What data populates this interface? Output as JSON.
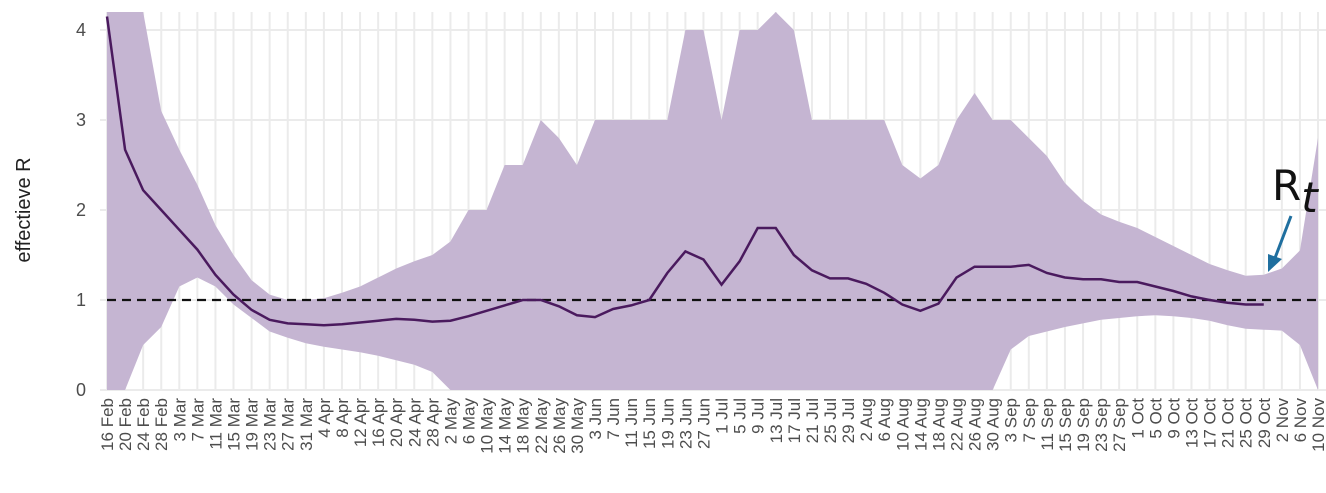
{
  "chart_data": {
    "type": "line",
    "y_label": "effectieve R",
    "categories": [
      "16 Feb",
      "20 Feb",
      "24 Feb",
      "28 Feb",
      "3 Mar",
      "7 Mar",
      "11 Mar",
      "15 Mar",
      "19 Mar",
      "23 Mar",
      "27 Mar",
      "31 Mar",
      "4 Apr",
      "8 Apr",
      "12 Apr",
      "16 Apr",
      "20 Apr",
      "24 Apr",
      "28 Apr",
      "2 May",
      "6 May",
      "10 May",
      "14 May",
      "18 May",
      "22 May",
      "26 May",
      "30 May",
      "3 Jun",
      "7 Jun",
      "11 Jun",
      "15 Jun",
      "19 Jun",
      "23 Jun",
      "27 Jun",
      "1 Jul",
      "5 Jul",
      "9 Jul",
      "13 Jul",
      "17 Jul",
      "21 Jul",
      "25 Jul",
      "29 Jul",
      "2 Aug",
      "6 Aug",
      "10 Aug",
      "14 Aug",
      "18 Aug",
      "22 Aug",
      "26 Aug",
      "30 Aug",
      "3 Sep",
      "7 Sep",
      "11 Sep",
      "15 Sep",
      "19 Sep",
      "23 Sep",
      "27 Sep",
      "1 Oct",
      "5 Oct",
      "9 Oct",
      "13 Oct",
      "17 Oct",
      "21 Oct",
      "25 Oct",
      "29 Oct",
      "2 Nov",
      "6 Nov",
      "10 Nov"
    ],
    "series": [
      {
        "color": "#4a1a5e",
        "values": [
          4.15,
          2.67,
          2.22,
          2.0,
          1.78,
          1.56,
          1.28,
          1.06,
          0.89,
          0.78,
          0.74,
          0.73,
          0.72,
          0.73,
          0.75,
          0.77,
          0.79,
          0.78,
          0.76,
          0.77,
          0.82,
          0.88,
          0.94,
          1.0,
          1.0,
          0.93,
          0.83,
          0.81,
          0.9,
          0.94,
          1.0,
          1.3,
          1.54,
          1.45,
          1.17,
          1.43,
          1.8,
          1.8,
          1.5,
          1.33,
          1.24,
          1.24,
          1.18,
          1.08,
          0.95,
          0.88,
          0.96,
          1.25,
          1.37,
          1.37,
          1.37,
          1.39,
          1.3,
          1.25,
          1.23,
          1.23,
          1.2,
          1.2,
          1.15,
          1.1,
          1.04,
          1.0,
          0.97,
          0.95,
          0.95,
          null,
          null,
          null
        ]
      },
      {
        "type": "band",
        "color": "#c5b5d2",
        "upper": [
          4.2,
          4.2,
          4.2,
          3.1,
          2.67,
          2.28,
          1.83,
          1.5,
          1.22,
          1.06,
          1.0,
          1.0,
          1.02,
          1.08,
          1.15,
          1.25,
          1.35,
          1.43,
          1.5,
          1.65,
          2.0,
          2.0,
          2.5,
          2.5,
          3.0,
          2.8,
          2.5,
          3.0,
          3.0,
          3.0,
          3.0,
          3.0,
          4.0,
          4.0,
          3.0,
          4.0,
          4.0,
          4.2,
          4.0,
          3.0,
          3.0,
          3.0,
          3.0,
          3.0,
          2.5,
          2.35,
          2.5,
          3.0,
          3.3,
          3.0,
          3.0,
          2.8,
          2.6,
          2.3,
          2.1,
          1.95,
          1.87,
          1.8,
          1.7,
          1.6,
          1.5,
          1.4,
          1.33,
          1.27,
          1.28,
          1.35,
          1.55,
          2.8
        ],
        "lower": [
          0,
          0,
          0.5,
          0.7,
          1.15,
          1.25,
          1.15,
          0.95,
          0.8,
          0.65,
          0.58,
          0.52,
          0.48,
          0.45,
          0.42,
          0.38,
          0.33,
          0.28,
          0.2,
          0,
          0,
          0,
          0,
          0,
          0,
          0,
          0,
          0,
          0,
          0,
          0,
          0,
          0,
          0,
          0,
          0,
          0,
          0,
          0,
          0,
          0,
          0,
          0,
          0,
          0,
          0,
          0,
          0,
          0,
          0,
          0.45,
          0.6,
          0.65,
          0.7,
          0.74,
          0.78,
          0.8,
          0.82,
          0.83,
          0.82,
          0.8,
          0.77,
          0.72,
          0.68,
          0.67,
          0.66,
          0.5,
          0
        ]
      }
    ],
    "reference_line": 1,
    "ylim": [
      0,
      4.2
    ],
    "yticks": [
      0,
      1,
      2,
      3,
      4
    ],
    "grid": true,
    "annotation": {
      "text": "R",
      "subscript": "t",
      "color": "#1f6f9f"
    }
  }
}
